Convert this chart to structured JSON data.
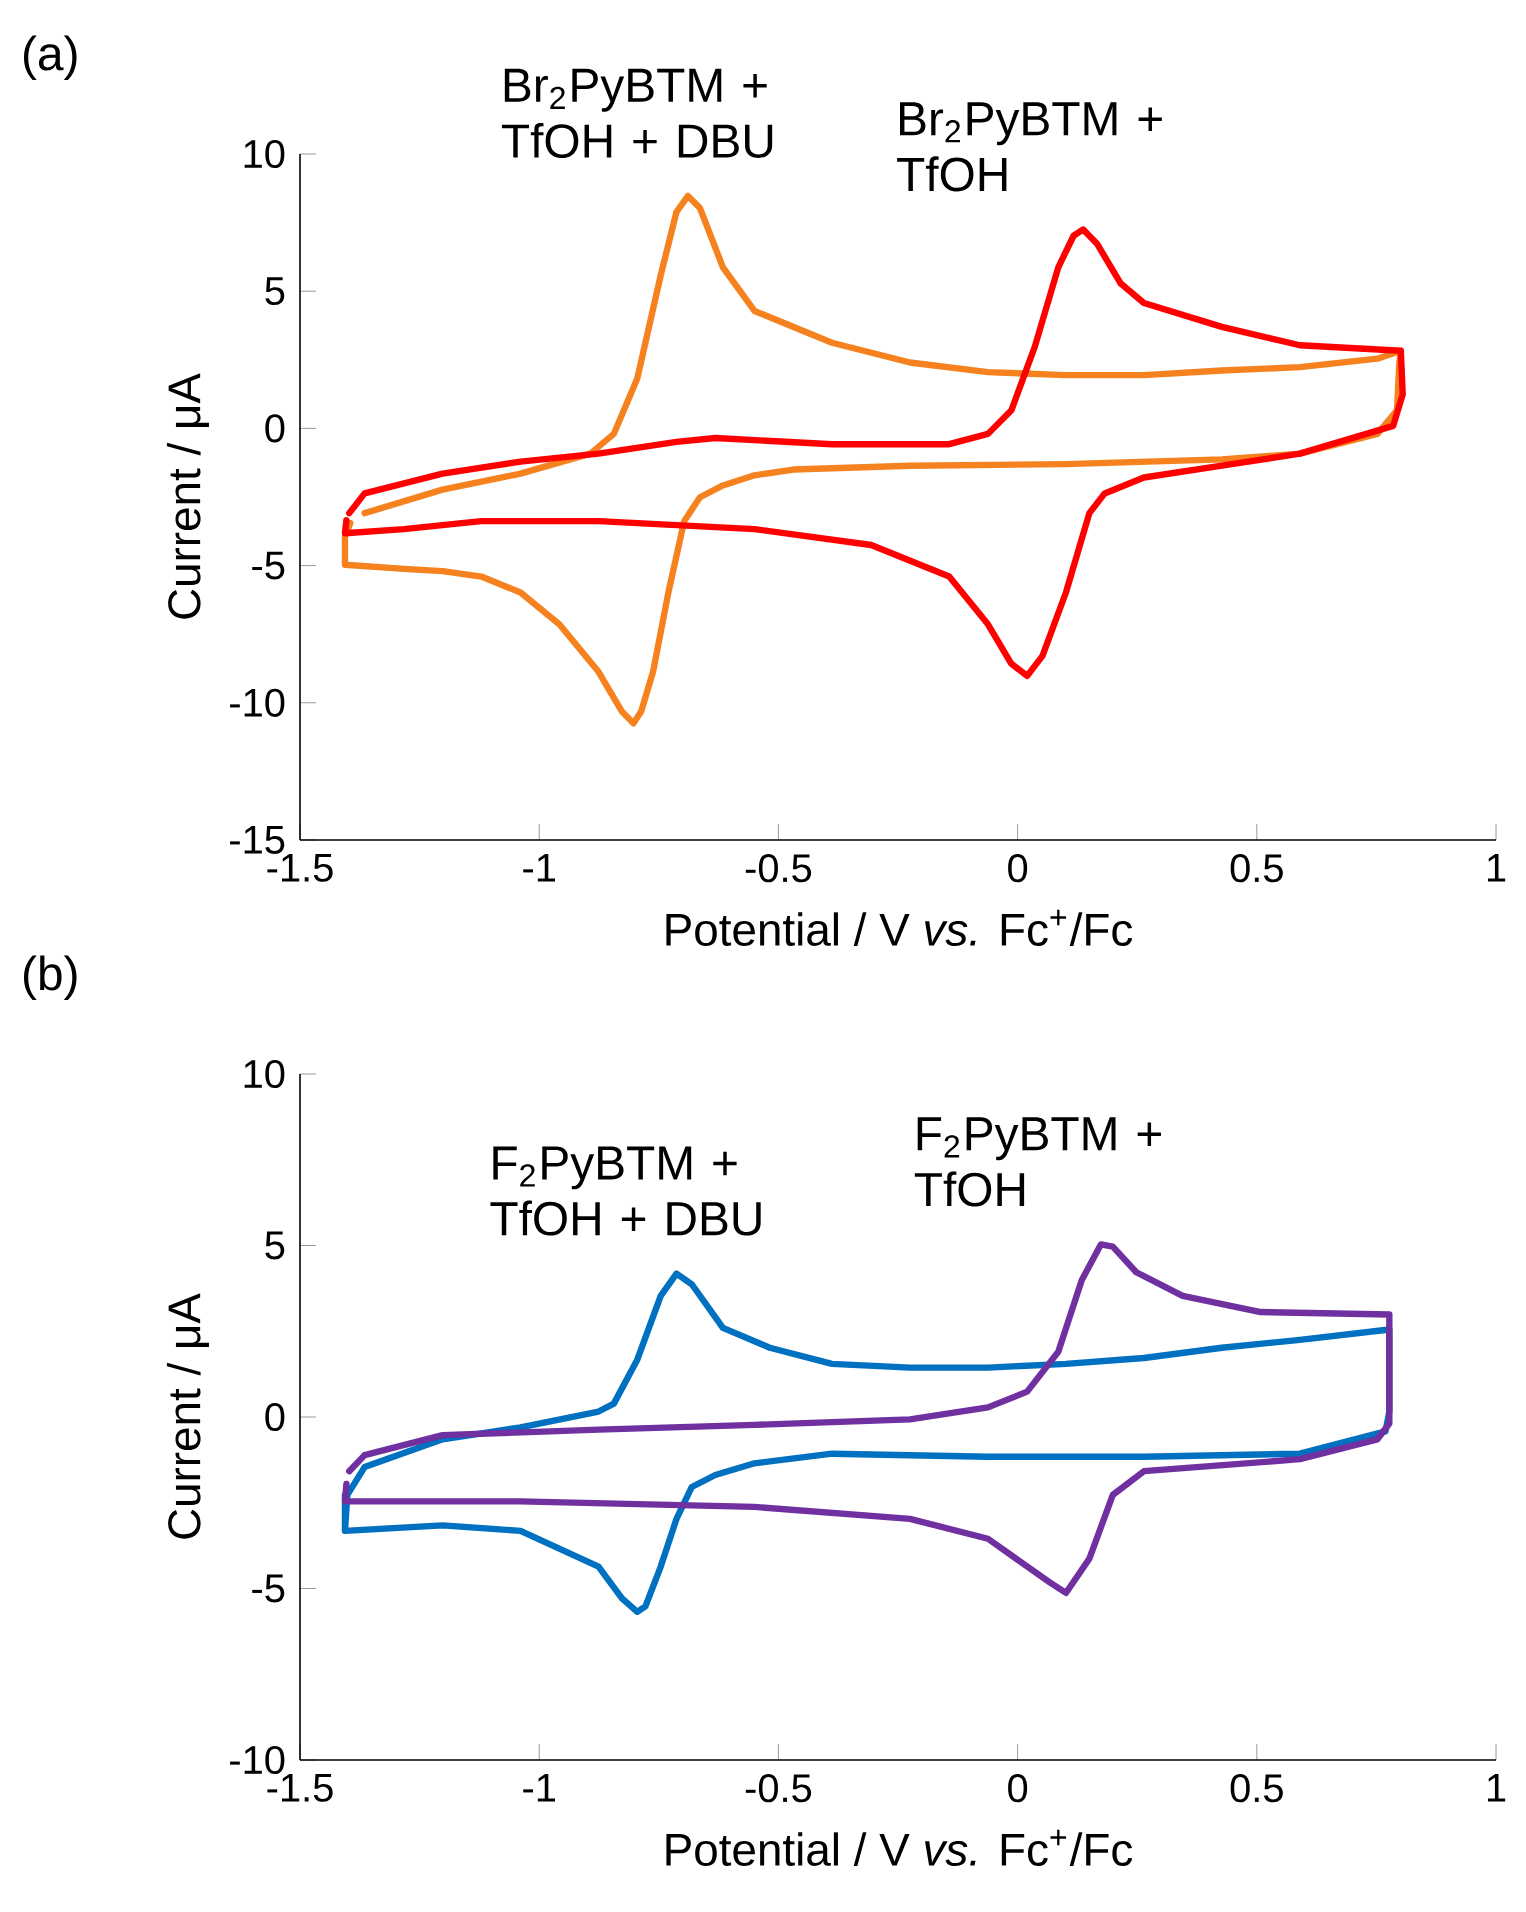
{
  "chart_data": [
    {
      "type": "line",
      "title": "(a)",
      "xlabel": "Potential / V *vs.* Fc$^{+}$/Fc",
      "ylabel": "Current / μA",
      "xlim": [
        -1.5,
        1
      ],
      "xticks": [
        -1.5,
        -1,
        -0.5,
        0,
        0.5,
        1
      ],
      "ylim": [
        -15,
        10
      ],
      "yticks": [
        -15,
        -10,
        -5,
        0,
        5,
        10
      ],
      "series": [
        {
          "name": "Br$_{2}$PyBTM + TfOH + DBU",
          "color": "#f5821f",
          "x": [
            -1.365,
            -1.202,
            -1.039,
            -0.893,
            -0.844,
            -0.795,
            -0.746,
            -0.713,
            -0.689,
            -0.664,
            -0.616,
            -0.55,
            -0.388,
            -0.225,
            -0.062,
            0.101,
            0.264,
            0.427,
            0.59,
            0.752,
            0.801,
            0.798,
            0.793,
            0.752,
            0.59,
            0.427,
            0.101,
            -0.225,
            -0.469,
            -0.55,
            -0.616,
            -0.664,
            -0.697,
            -0.73,
            -0.762,
            -0.787,
            -0.803,
            -0.827,
            -0.876,
            -0.958,
            -1.039,
            -1.121,
            -1.202,
            -1.283,
            -1.406,
            -1.406,
            -1.395
          ],
          "values": [
            -3.09,
            -2.23,
            -1.65,
            -0.92,
            -0.2,
            1.82,
            5.58,
            7.89,
            8.47,
            8.03,
            5.87,
            4.28,
            3.12,
            2.4,
            2.05,
            1.94,
            1.94,
            2.11,
            2.23,
            2.54,
            2.83,
            2.4,
            0.66,
            -0.2,
            -0.92,
            -1.13,
            -1.3,
            -1.36,
            -1.5,
            -1.71,
            -2.08,
            -2.51,
            -3.38,
            -5.98,
            -8.87,
            -10.32,
            -10.75,
            -10.32,
            -8.87,
            -7.14,
            -5.98,
            -5.4,
            -5.2,
            -5.12,
            -4.97,
            -3.96,
            -3.45
          ]
        },
        {
          "name": "Br$_{2}$PyBTM + TfOH",
          "color": "#ff0000",
          "x": [
            -1.397,
            -1.365,
            -1.202,
            -1.039,
            -0.876,
            -0.713,
            -0.632,
            -0.388,
            -0.145,
            -0.062,
            -0.013,
            0.036,
            0.085,
            0.117,
            0.137,
            0.166,
            0.215,
            0.264,
            0.427,
            0.59,
            0.801,
            0.805,
            0.785,
            0.59,
            0.427,
            0.264,
            0.182,
            0.15,
            0.101,
            0.052,
            0.02,
            -0.013,
            -0.062,
            -0.143,
            -0.306,
            -0.55,
            -0.876,
            -1.121,
            -1.283,
            -1.406,
            -1.403
          ],
          "values": [
            -3.09,
            -2.37,
            -1.65,
            -1.21,
            -0.92,
            -0.49,
            -0.35,
            -0.58,
            -0.58,
            -0.2,
            0.66,
            2.98,
            5.87,
            7.02,
            7.25,
            6.73,
            5.29,
            4.57,
            3.7,
            3.03,
            2.83,
            1.24,
            0.09,
            -0.92,
            -1.36,
            -1.79,
            -2.37,
            -3.09,
            -5.98,
            -8.29,
            -9.02,
            -8.58,
            -7.14,
            -5.4,
            -4.25,
            -3.67,
            -3.38,
            -3.38,
            -3.67,
            -3.82,
            -3.35
          ]
        }
      ]
    },
    {
      "type": "line",
      "title": "(b)",
      "xlabel": "Potential / V *vs.* Fc$^{+}$/Fc",
      "ylabel": "Current / μA",
      "xlim": [
        -1.5,
        1
      ],
      "xticks": [
        -1.5,
        -1,
        -0.5,
        0,
        0.5,
        1
      ],
      "ylim": [
        -10,
        10
      ],
      "yticks": [
        -10,
        -5,
        0,
        5,
        10
      ],
      "series": [
        {
          "name": "F$_{2}$PyBTM + TfOH + DBU",
          "color": "#0070c0",
          "x": [
            -1.406,
            -1.401,
            -1.365,
            -1.202,
            -1.039,
            -0.876,
            -0.844,
            -0.795,
            -0.746,
            -0.713,
            -0.681,
            -0.616,
            -0.518,
            -0.388,
            -0.225,
            -0.062,
            0.101,
            0.264,
            0.427,
            0.59,
            0.777,
            0.777,
            0.769,
            0.59,
            0.264,
            -0.062,
            -0.388,
            -0.55,
            -0.632,
            -0.681,
            -0.713,
            -0.746,
            -0.778,
            -0.795,
            -0.827,
            -0.876,
            -1.039,
            -1.202,
            -1.406,
            -1.406
          ],
          "values": [
            -3.32,
            -2.27,
            -1.46,
            -0.65,
            -0.3,
            0.16,
            0.39,
            1.67,
            3.53,
            4.18,
            3.87,
            2.6,
            2.02,
            1.55,
            1.44,
            1.44,
            1.55,
            1.72,
            2.02,
            2.25,
            2.55,
            0.16,
            -0.42,
            -1.07,
            -1.16,
            -1.16,
            -1.07,
            -1.35,
            -1.69,
            -2.04,
            -2.97,
            -4.36,
            -5.52,
            -5.68,
            -5.29,
            -4.36,
            -3.32,
            -3.16,
            -3.32,
            -2.27
          ]
        },
        {
          "name": "F$_{2}$PyBTM + TfOH",
          "color": "#7030a0",
          "x": [
            -1.397,
            -1.365,
            -1.202,
            -0.876,
            -0.55,
            -0.225,
            -0.062,
            0.02,
            0.085,
            0.134,
            0.174,
            0.199,
            0.248,
            0.345,
            0.508,
            0.777,
            0.777,
            0.752,
            0.59,
            0.264,
            0.199,
            0.15,
            0.101,
            0.068,
            -0.062,
            -0.225,
            -0.55,
            -1.039,
            -1.406,
            -1.403
          ],
          "values": [
            -1.58,
            -1.11,
            -0.53,
            -0.37,
            -0.23,
            -0.07,
            0.28,
            0.74,
            1.9,
            3.99,
            5.03,
            4.97,
            4.22,
            3.53,
            3.06,
            2.99,
            -0.19,
            -0.65,
            -1.23,
            -1.58,
            -2.27,
            -4.13,
            -5.13,
            -4.83,
            -3.55,
            -2.97,
            -2.62,
            -2.46,
            -2.46,
            -1.95
          ]
        }
      ]
    }
  ]
}
